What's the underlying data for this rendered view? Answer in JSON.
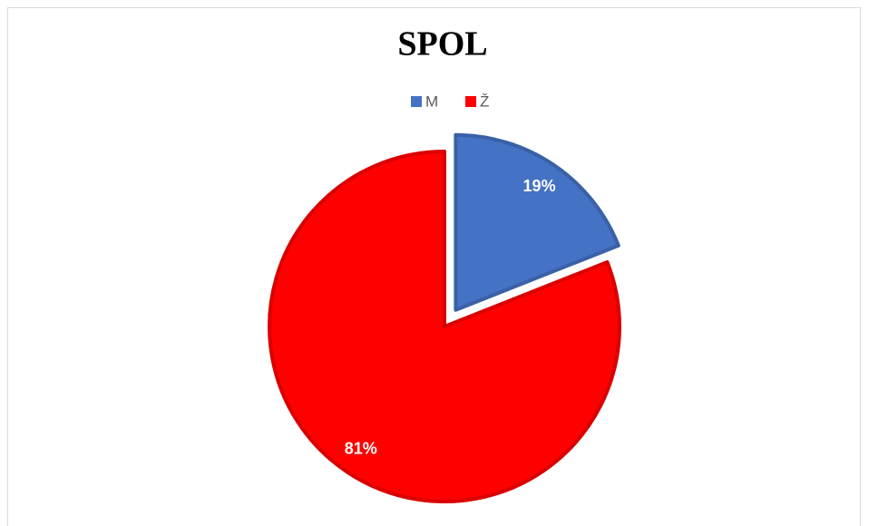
{
  "chart_data": {
    "type": "pie",
    "title": "SPOL",
    "categories": [
      "M",
      "Ž"
    ],
    "values": [
      19,
      81
    ],
    "value_labels": [
      "19%",
      "81%"
    ],
    "colors": [
      "#4472c4",
      "#ff0000"
    ],
    "legend": "top"
  }
}
